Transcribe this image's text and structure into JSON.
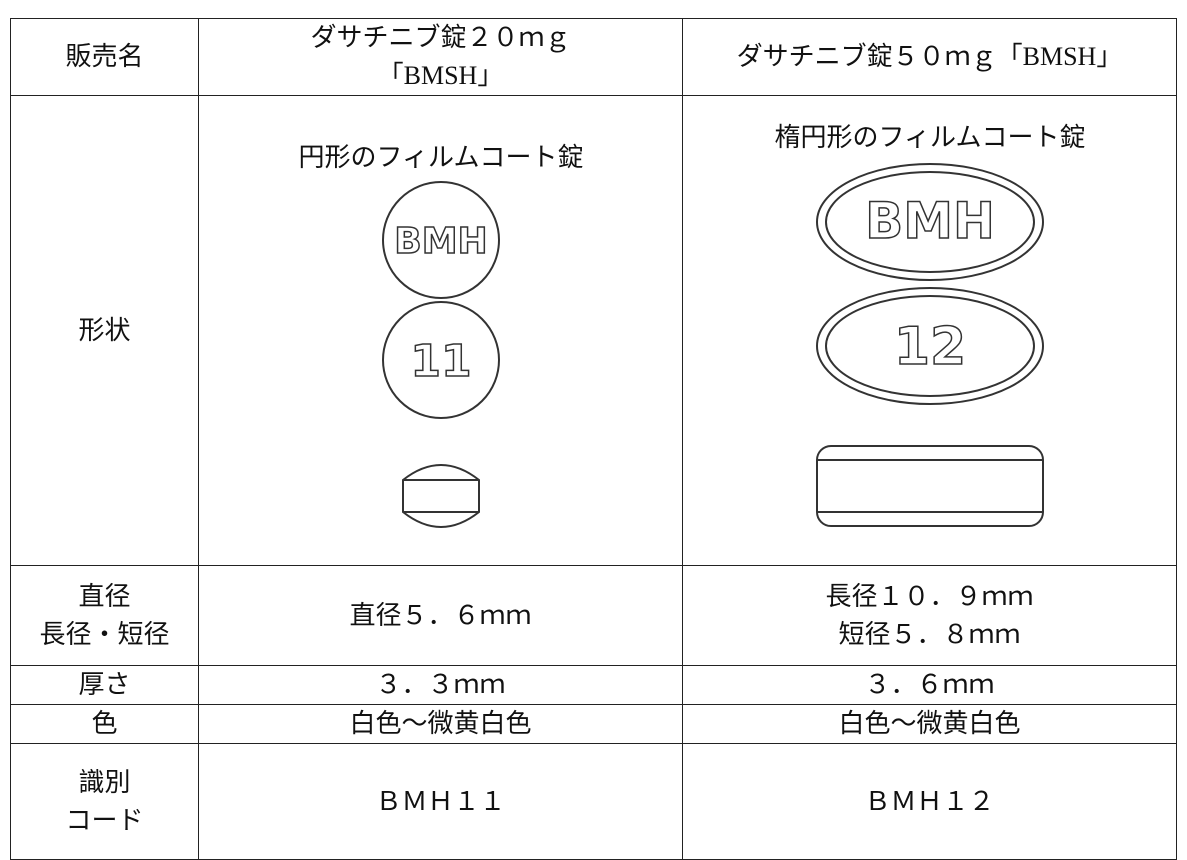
{
  "table": {
    "header": [
      "販売名",
      [
        "ダサチニブ錠２０ｍｇ",
        "「BMSH」"
      ],
      "ダサチニブ錠５０ｍｇ「BMSH」"
    ],
    "shape": {
      "label": "形状",
      "left": {
        "description": "円形のフィルムコート錠",
        "front": "BMH",
        "back": "11"
      },
      "right": {
        "description": "楕円形のフィルムコート錠",
        "front": "BMH",
        "back": "12"
      }
    },
    "rows": [
      [
        [
          "直径",
          "長径・短径"
        ],
        "直径５．６ｍｍ",
        [
          "長径１０．９ｍｍ",
          "短径５．８ｍｍ"
        ]
      ],
      [
        "厚さ",
        "３．３ｍｍ",
        "３．６ｍｍ"
      ],
      [
        "色",
        "白色～微黄白色",
        "白色～微黄白色"
      ],
      [
        [
          "識別",
          "コード"
        ],
        "ＢＭＨ１１",
        "ＢＭＨ１２"
      ]
    ]
  }
}
